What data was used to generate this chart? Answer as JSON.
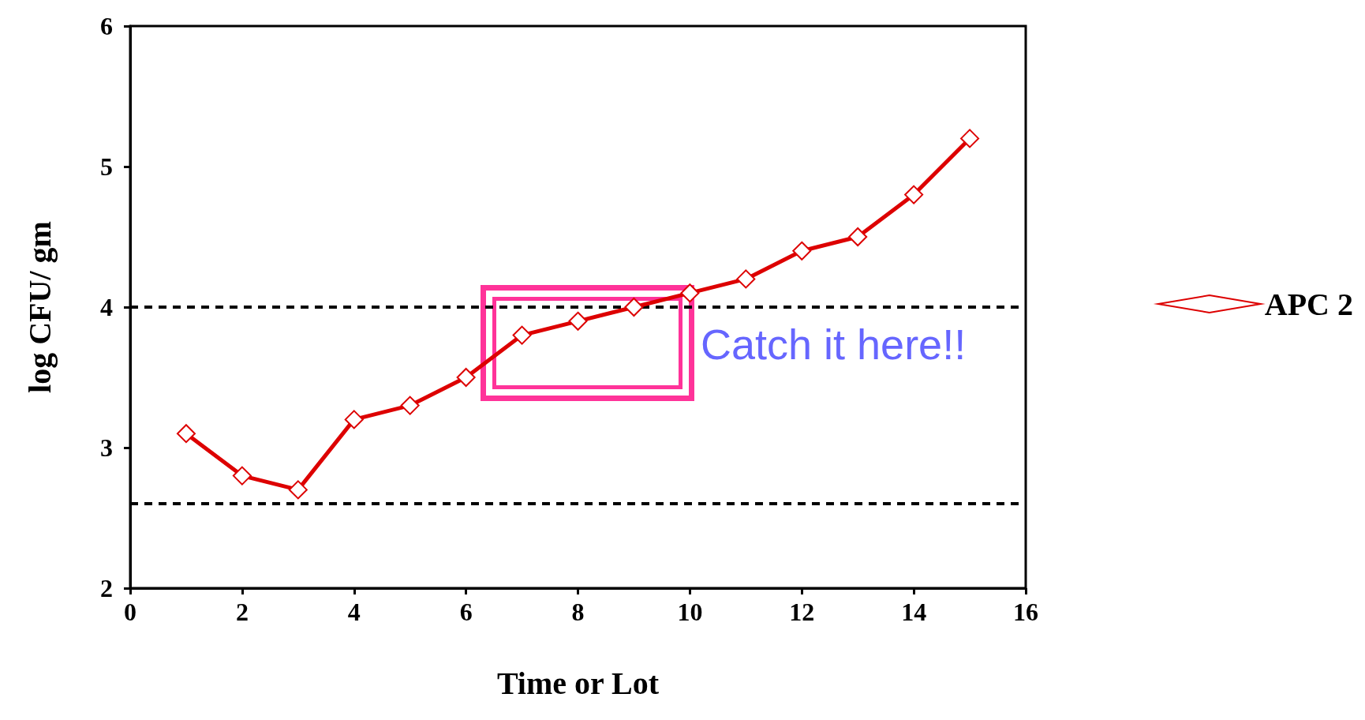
{
  "chart_data": {
    "type": "line",
    "xlabel": "Time or Lot",
    "ylabel": "log CFU/ gm",
    "x": [
      1,
      2,
      3,
      4,
      5,
      6,
      7,
      8,
      9,
      10,
      11,
      12,
      13,
      14,
      15
    ],
    "series": [
      {
        "name": "APC 2",
        "color": "#dd0000",
        "values": [
          3.1,
          2.8,
          2.7,
          3.2,
          3.3,
          3.5,
          3.8,
          3.9,
          4.0,
          4.1,
          4.2,
          4.4,
          4.5,
          4.8,
          5.2
        ]
      }
    ],
    "xlim": [
      0,
      16
    ],
    "xticks": [
      0,
      2,
      4,
      6,
      8,
      10,
      12,
      14,
      16
    ],
    "ylim": [
      2,
      6
    ],
    "yticks": [
      2,
      3,
      4,
      5,
      6
    ],
    "ref_lines": [
      {
        "axis": "y",
        "value": 4,
        "color": "#000000",
        "line_style": "dashed"
      },
      {
        "axis": "y",
        "value": 2.6,
        "color": "#000000",
        "line_style": "dashed"
      }
    ],
    "annotations": [
      "Catch it here!!"
    ],
    "marker": "diamond",
    "line_style": "solid",
    "grid": false,
    "legend": "right"
  }
}
